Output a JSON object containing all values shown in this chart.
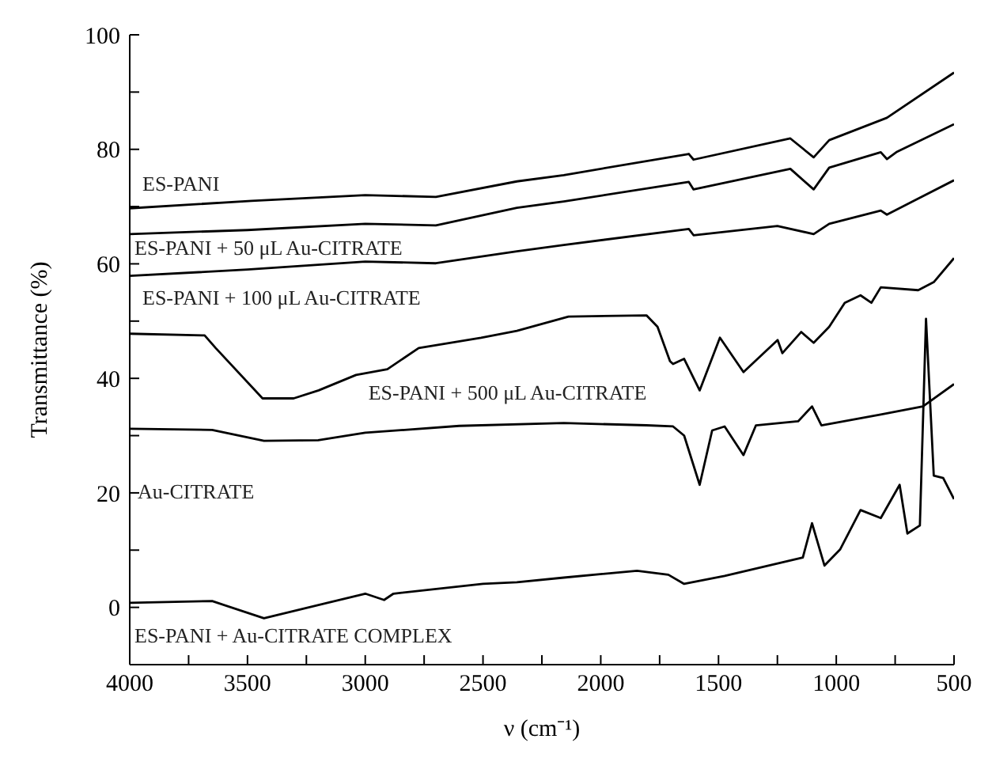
{
  "chart_data": {
    "type": "line",
    "xlabel": "ν (cm⁻¹)",
    "ylabel": "Transmittance (%)",
    "xlim": [
      4000,
      500
    ],
    "xticks": [
      4000,
      {
        "value": 3750,
        "label": null
      },
      3500,
      {
        "value": 3250,
        "label": null
      },
      3000,
      {
        "value": 2750,
        "label": null
      },
      2500,
      {
        "value": 2250,
        "label": null
      },
      2000,
      {
        "value": 1750,
        "label": null
      },
      1500,
      {
        "value": 1250,
        "label": null
      },
      1000,
      {
        "value": 750,
        "label": null
      },
      500
    ],
    "ylim": [
      -10,
      100
    ],
    "yticks": [
      0,
      {
        "value": 10,
        "label": null
      },
      20,
      {
        "value": 30,
        "label": null
      },
      40,
      {
        "value": 50,
        "label": null
      },
      60,
      {
        "value": 70,
        "label": null
      },
      80,
      {
        "value": 90,
        "label": null
      },
      100
    ],
    "series": [
      {
        "name": "ES-PANI",
        "color": "#000000",
        "x": [
          4000,
          3483,
          3000,
          2700,
          2356,
          2157,
          1626,
          1606,
          1195,
          1096,
          1030,
          785,
          500
        ],
        "values": [
          69.7,
          71,
          72,
          71.7,
          74.4,
          75.5,
          79.2,
          78.2,
          81.9,
          78.6,
          81.6,
          85.5,
          93.4
        ]
      },
      {
        "name": "ES-PANI + 50 μL Au-CITRATE",
        "color": "#000000",
        "x": [
          4000,
          3500,
          3000,
          2700,
          2356,
          2157,
          1626,
          1606,
          1195,
          1096,
          1030,
          811,
          785,
          745,
          500
        ],
        "values": [
          65.2,
          65.9,
          67,
          66.7,
          69.8,
          70.9,
          74.3,
          73,
          76.6,
          73,
          76.8,
          79.5,
          78.3,
          79.5,
          84.4
        ]
      },
      {
        "name": "ES-PANI + 100 μL Au-CITRATE",
        "color": "#000000",
        "x": [
          4000,
          3500,
          3000,
          2700,
          2356,
          2157,
          1626,
          1606,
          1250,
          1096,
          1030,
          811,
          785,
          500
        ],
        "values": [
          57.9,
          59,
          60.4,
          60.1,
          62.2,
          63.3,
          66.1,
          65,
          66.6,
          65.2,
          67,
          69.3,
          68.6,
          74.6
        ]
      },
      {
        "name": "ES-PANI + 500 μL Au-CITRATE",
        "color": "#000000",
        "x": [
          4000,
          3682,
          3635,
          3436,
          3304,
          3198,
          3039,
          2906,
          2773,
          2508,
          2356,
          2137,
          1806,
          1759,
          1706,
          1693,
          1646,
          1580,
          1494,
          1394,
          1249,
          1229,
          1149,
          1096,
          1030,
          964,
          897,
          851,
          811,
          652,
          586,
          500
        ],
        "values": [
          47.8,
          47.5,
          45.3,
          36.5,
          36.5,
          37.9,
          40.6,
          41.6,
          45.3,
          47.1,
          48.3,
          50.8,
          51,
          49,
          43,
          42.5,
          43.4,
          37.9,
          47.1,
          41.1,
          46.7,
          44.4,
          48.1,
          46.2,
          49,
          53.2,
          54.5,
          53.2,
          55.9,
          55.4,
          56.8,
          61
        ]
      },
      {
        "name": "Au-CITRATE",
        "color": "#000000",
        "x": [
          4000,
          3650,
          3430,
          3200,
          3000,
          2601,
          2157,
          1806,
          1693,
          1646,
          1580,
          1527,
          1474,
          1394,
          1341,
          1162,
          1103,
          1063,
          811,
          632,
          500
        ],
        "values": [
          31.2,
          31,
          29.1,
          29.2,
          30.5,
          31.7,
          32.2,
          31.8,
          31.6,
          30,
          21.4,
          30.9,
          31.6,
          26.6,
          31.8,
          32.5,
          35.1,
          31.8,
          33.7,
          35.1,
          39
        ]
      },
      {
        "name": "ES-PANI + Au-CITRATE COMPLEX",
        "color": "#000000",
        "x": [
          4000,
          3650,
          3430,
          3000,
          2920,
          2880,
          2500,
          2356,
          2157,
          1846,
          1713,
          1646,
          1474,
          1142,
          1103,
          1050,
          984,
          897,
          811,
          731,
          698,
          645,
          619,
          586,
          546,
          500
        ],
        "values": [
          0.8,
          1.1,
          -1.9,
          2.4,
          1.3,
          2.4,
          4.1,
          4.4,
          5.2,
          6.4,
          5.7,
          4.1,
          5.5,
          8.7,
          14.7,
          7.3,
          10.1,
          17,
          15.6,
          21.4,
          12.9,
          14.3,
          50.4,
          23,
          22.6,
          18.9
        ]
      }
    ]
  }
}
